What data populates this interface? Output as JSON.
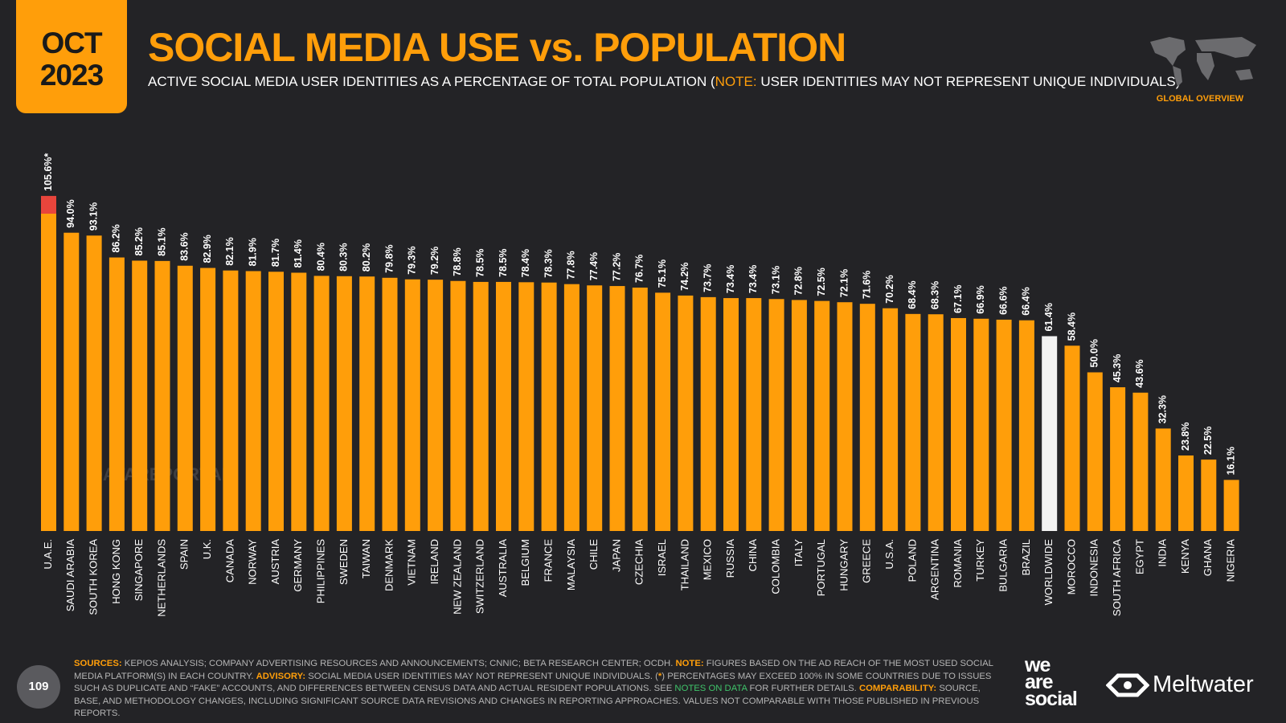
{
  "header": {
    "date_line1": "OCT",
    "date_line2": "2023",
    "title": "SOCIAL MEDIA USE vs. POPULATION",
    "subtitle": [
      "ACTIVE SOCIAL MEDIA USER IDENTITIES AS A PERCENTAGE OF TOTAL POPULATION (",
      "NOTE:",
      " USER IDENTITIES MAY NOT REPRESENT UNIQUE INDIVIDUALS)"
    ],
    "section": "GLOBAL OVERVIEW"
  },
  "chart_data": {
    "type": "bar",
    "categories": [
      "U.A.E.",
      "SAUDI ARABIA",
      "SOUTH KOREA",
      "HONG KONG",
      "SINGAPORE",
      "NETHERLANDS",
      "SPAIN",
      "U.K.",
      "CANADA",
      "NORWAY",
      "AUSTRIA",
      "GERMANY",
      "PHILIPPINES",
      "SWEDEN",
      "TAIWAN",
      "DENMARK",
      "VIETNAM",
      "IRELAND",
      "NEW ZEALAND",
      "SWITZERLAND",
      "AUSTRALIA",
      "BELGIUM",
      "FRANCE",
      "MALAYSIA",
      "CHILE",
      "JAPAN",
      "CZECHIA",
      "ISRAEL",
      "THAILAND",
      "MEXICO",
      "RUSSIA",
      "CHINA",
      "COLOMBIA",
      "ITALY",
      "PORTUGAL",
      "HUNGARY",
      "GREECE",
      "U.S.A.",
      "POLAND",
      "ARGENTINA",
      "ROMANIA",
      "TURKEY",
      "BULGARIA",
      "BRAZIL",
      "WORLDWIDE",
      "MOROCCO",
      "INDONESIA",
      "SOUTH AFRICA",
      "EGYPT",
      "INDIA",
      "KENYA",
      "GHANA",
      "NIGERIA"
    ],
    "values": [
      105.6,
      94.0,
      93.1,
      86.2,
      85.2,
      85.1,
      83.6,
      82.9,
      82.1,
      81.9,
      81.7,
      81.4,
      80.4,
      80.3,
      80.2,
      79.8,
      79.3,
      79.2,
      78.8,
      78.5,
      78.5,
      78.4,
      78.3,
      77.8,
      77.4,
      77.2,
      76.7,
      75.1,
      74.2,
      73.7,
      73.4,
      73.4,
      73.1,
      72.8,
      72.5,
      72.1,
      71.6,
      70.2,
      68.4,
      68.3,
      67.1,
      66.9,
      66.6,
      66.4,
      61.4,
      58.4,
      50.0,
      45.3,
      43.6,
      32.3,
      23.8,
      22.5,
      16.1
    ],
    "value_labels": [
      "105.6%*",
      "94.0%",
      "93.1%",
      "86.2%",
      "85.2%",
      "85.1%",
      "83.6%",
      "82.9%",
      "82.1%",
      "81.9%",
      "81.7%",
      "81.4%",
      "80.4%",
      "80.3%",
      "80.2%",
      "79.8%",
      "79.3%",
      "79.2%",
      "78.8%",
      "78.5%",
      "78.5%",
      "78.4%",
      "78.3%",
      "77.8%",
      "77.4%",
      "77.2%",
      "76.7%",
      "75.1%",
      "74.2%",
      "73.7%",
      "73.4%",
      "73.4%",
      "73.1%",
      "72.8%",
      "72.5%",
      "72.1%",
      "71.6%",
      "70.2%",
      "68.4%",
      "68.3%",
      "67.1%",
      "66.9%",
      "66.6%",
      "66.4%",
      "61.4%",
      "58.4%",
      "50.0%",
      "45.3%",
      "43.6%",
      "32.3%",
      "23.8%",
      "22.5%",
      "16.1%"
    ],
    "colors": [
      "#ff9e0a",
      "#ff9e0a",
      "#ff9e0a",
      "#ff9e0a",
      "#ff9e0a",
      "#ff9e0a",
      "#ff9e0a",
      "#ff9e0a",
      "#ff9e0a",
      "#ff9e0a",
      "#ff9e0a",
      "#ff9e0a",
      "#ff9e0a",
      "#ff9e0a",
      "#ff9e0a",
      "#ff9e0a",
      "#ff9e0a",
      "#ff9e0a",
      "#ff9e0a",
      "#ff9e0a",
      "#ff9e0a",
      "#ff9e0a",
      "#ff9e0a",
      "#ff9e0a",
      "#ff9e0a",
      "#ff9e0a",
      "#ff9e0a",
      "#ff9e0a",
      "#ff9e0a",
      "#ff9e0a",
      "#ff9e0a",
      "#ff9e0a",
      "#ff9e0a",
      "#ff9e0a",
      "#ff9e0a",
      "#ff9e0a",
      "#ff9e0a",
      "#ff9e0a",
      "#ff9e0a",
      "#ff9e0a",
      "#ff9e0a",
      "#ff9e0a",
      "#ff9e0a",
      "#ff9e0a",
      "#f2f2f2",
      "#ff9e0a",
      "#ff9e0a",
      "#ff9e0a",
      "#ff9e0a",
      "#ff9e0a",
      "#ff9e0a",
      "#ff9e0a",
      "#ff9e0a"
    ],
    "excess_above": 100,
    "excess_color": "#e8453c",
    "watermark": "DATAREPORTAL"
  },
  "footer": {
    "page": "109",
    "notes": [
      "SOURCES:",
      " KEPIOS ANALYSIS; COMPANY ADVERTISING RESOURCES AND ANNOUNCEMENTS; CNNIC; BETA RESEARCH CENTER; OCDH. ",
      "NOTE:",
      " FIGURES BASED ON THE AD REACH OF THE MOST USED SOCIAL MEDIA PLATFORM(S) IN EACH COUNTRY. ",
      "ADVISORY:",
      " SOCIAL MEDIA USER IDENTITIES MAY NOT REPRESENT UNIQUE INDIVIDUALS. (",
      "*",
      ") PERCENTAGES MAY EXCEED 100% IN SOME COUNTRIES DUE TO ISSUES SUCH AS DUPLICATE AND “FAKE” ACCOUNTS, AND DIFFERENCES BETWEEN CENSUS DATA AND ACTUAL RESIDENT POPULATIONS. SEE ",
      "NOTES ON DATA",
      " FOR FURTHER DETAILS. ",
      "COMPARABILITY:",
      " SOURCE, BASE, AND METHODOLOGY CHANGES, INCLUDING SIGNIFICANT SOURCE DATA REVISIONS AND CHANGES IN REPORTING APPROACHES. VALUES NOT COMPARABLE WITH THOSE PUBLISHED IN PREVIOUS REPORTS."
    ],
    "logo1": [
      "we",
      "are",
      "social"
    ],
    "logo2": "Meltwater"
  }
}
